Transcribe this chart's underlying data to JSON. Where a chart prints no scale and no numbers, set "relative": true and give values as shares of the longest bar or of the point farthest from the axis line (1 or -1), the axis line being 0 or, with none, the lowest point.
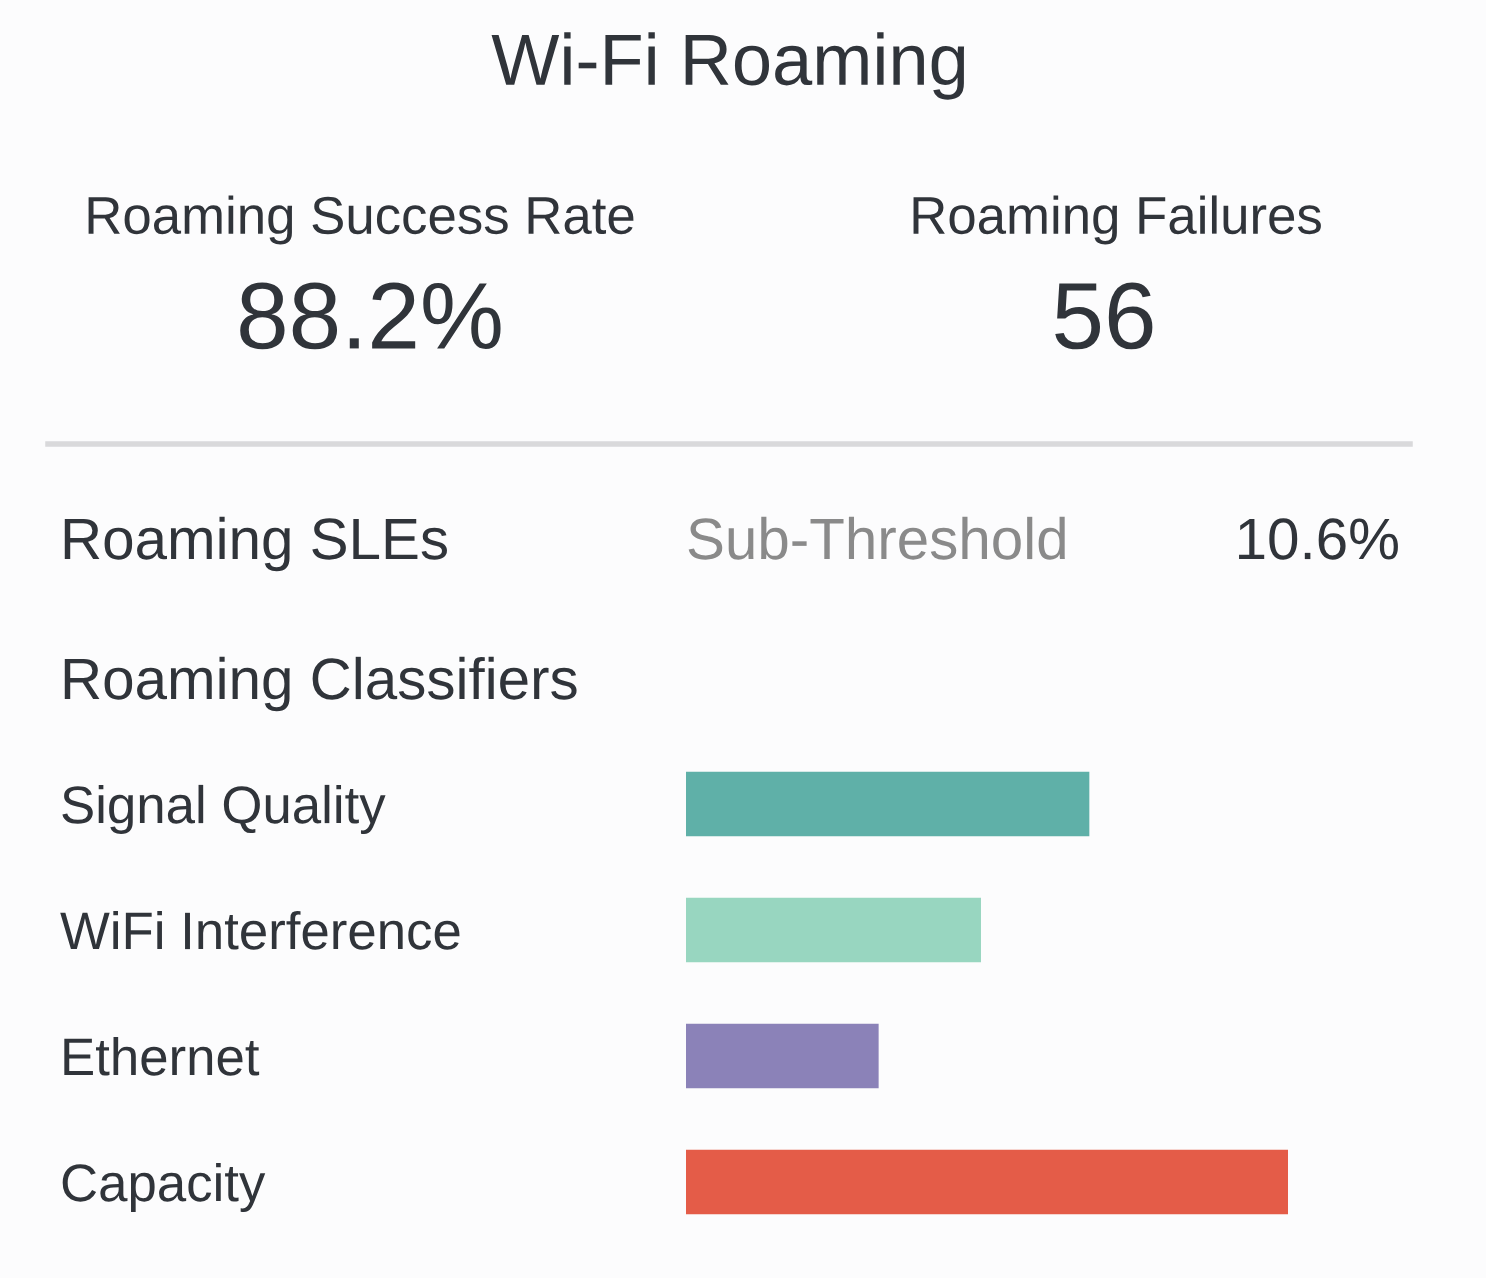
{
  "chart_data": [
    {
      "type": "other",
      "title": "Wi-Fi Roaming",
      "annotations": [
        "Roaming Success Rate",
        "88.2%",
        "Roaming Failures",
        "56",
        "Roaming SLEs",
        "Sub-Threshold",
        "10.6%"
      ]
    },
    {
      "type": "bar",
      "title": "Roaming Classifiers",
      "orientation": "horizontal",
      "relative": true,
      "categories": [
        "Signal Quality",
        "WiFi Interference",
        "Ethernet",
        "Capacity"
      ],
      "values": [
        0.67,
        0.49,
        0.32,
        1
      ],
      "colors": [
        "#5fb0a8",
        "#98d6c0",
        "#8b82b8",
        "#e45c48"
      ]
    }
  ]
}
